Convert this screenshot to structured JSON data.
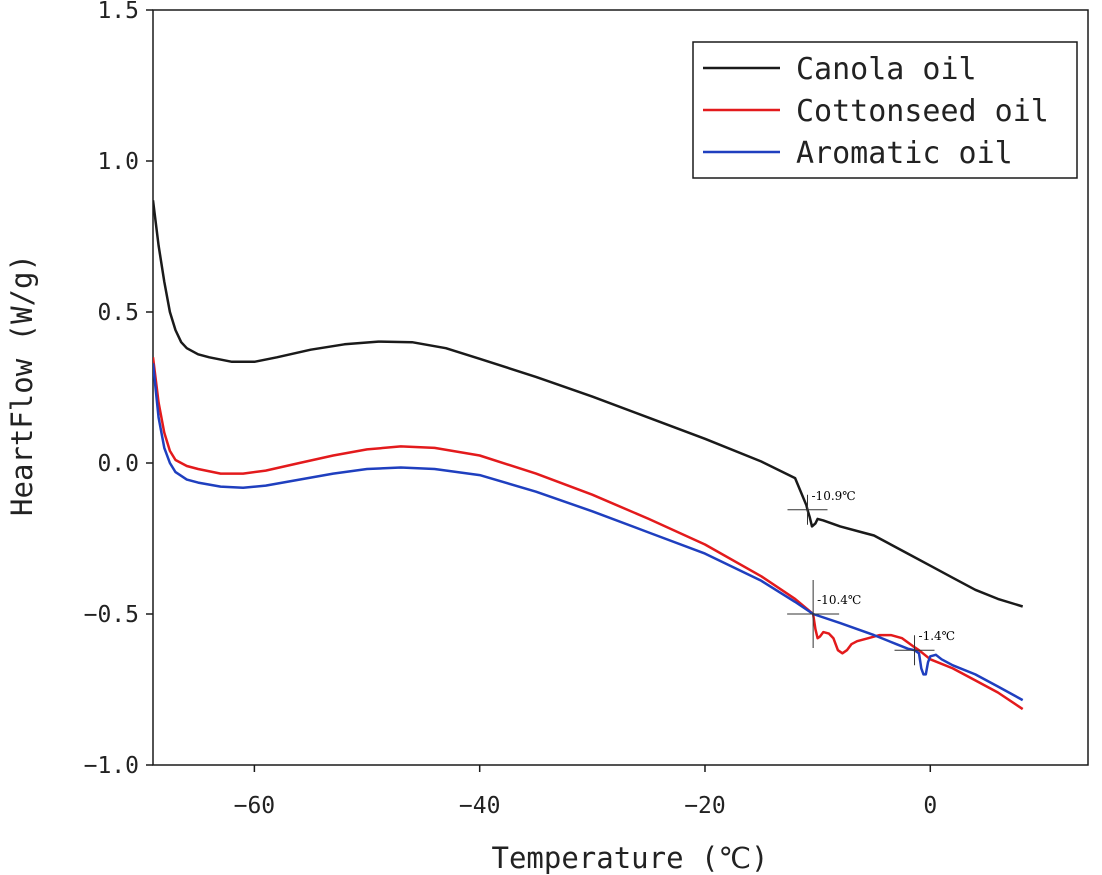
{
  "chart_data": {
    "type": "line",
    "xlabel": "Temperature (℃)",
    "ylabel": "HeartFlow (W/g)",
    "xlim": [
      -69,
      14
    ],
    "ylim": [
      -1.0,
      1.5
    ],
    "xticks": [
      -60,
      -40,
      -20,
      0
    ],
    "xtick_labels": [
      "−60",
      "−40",
      "−20",
      "0"
    ],
    "yticks": [
      -1.0,
      -0.5,
      0.0,
      0.5,
      1.0,
      1.5
    ],
    "ytick_labels": [
      "−1.0",
      "−0.5",
      "0.0",
      "0.5",
      "1.0",
      "1.5"
    ],
    "grid": false,
    "legend_position": "top-right",
    "series": [
      {
        "name": "Canola oil",
        "color": "#1a1a1a",
        "points": [
          [
            -69,
            0.87
          ],
          [
            -68.5,
            0.72
          ],
          [
            -68,
            0.6
          ],
          [
            -67.5,
            0.5
          ],
          [
            -67,
            0.44
          ],
          [
            -66.5,
            0.4
          ],
          [
            -66,
            0.38
          ],
          [
            -65,
            0.36
          ],
          [
            -64,
            0.35
          ],
          [
            -62,
            0.335
          ],
          [
            -60,
            0.335
          ],
          [
            -58,
            0.35
          ],
          [
            -55,
            0.375
          ],
          [
            -52,
            0.393
          ],
          [
            -49,
            0.402
          ],
          [
            -46,
            0.4
          ],
          [
            -43,
            0.38
          ],
          [
            -40,
            0.345
          ],
          [
            -35,
            0.285
          ],
          [
            -30,
            0.22
          ],
          [
            -25,
            0.15
          ],
          [
            -20,
            0.08
          ],
          [
            -15,
            0.005
          ],
          [
            -12,
            -0.05
          ],
          [
            -11,
            -0.14
          ],
          [
            -10.9,
            -0.155
          ],
          [
            -10.7,
            -0.18
          ],
          [
            -10.5,
            -0.21
          ],
          [
            -10.2,
            -0.2
          ],
          [
            -10.0,
            -0.185
          ],
          [
            -9.5,
            -0.19
          ],
          [
            -8,
            -0.21
          ],
          [
            -6,
            -0.23
          ],
          [
            -5,
            -0.24
          ],
          [
            -4,
            -0.26
          ],
          [
            -2,
            -0.3
          ],
          [
            0,
            -0.34
          ],
          [
            2,
            -0.38
          ],
          [
            4,
            -0.42
          ],
          [
            6,
            -0.45
          ],
          [
            8.2,
            -0.475
          ]
        ]
      },
      {
        "name": "Cottonseed oil",
        "color": "#e31a1c",
        "points": [
          [
            -69,
            0.35
          ],
          [
            -68.5,
            0.2
          ],
          [
            -68,
            0.1
          ],
          [
            -67.5,
            0.04
          ],
          [
            -67,
            0.01
          ],
          [
            -66,
            -0.01
          ],
          [
            -65,
            -0.02
          ],
          [
            -63,
            -0.035
          ],
          [
            -61,
            -0.035
          ],
          [
            -59,
            -0.025
          ],
          [
            -56,
            0.0
          ],
          [
            -53,
            0.025
          ],
          [
            -50,
            0.045
          ],
          [
            -47,
            0.055
          ],
          [
            -44,
            0.05
          ],
          [
            -40,
            0.025
          ],
          [
            -35,
            -0.035
          ],
          [
            -30,
            -0.105
          ],
          [
            -25,
            -0.185
          ],
          [
            -20,
            -0.27
          ],
          [
            -15,
            -0.375
          ],
          [
            -12,
            -0.45
          ],
          [
            -10.4,
            -0.5
          ],
          [
            -10.2,
            -0.55
          ],
          [
            -10.0,
            -0.58
          ],
          [
            -9.8,
            -0.575
          ],
          [
            -9.5,
            -0.56
          ],
          [
            -9,
            -0.565
          ],
          [
            -8.6,
            -0.58
          ],
          [
            -8.2,
            -0.62
          ],
          [
            -7.8,
            -0.63
          ],
          [
            -7.4,
            -0.62
          ],
          [
            -7,
            -0.6
          ],
          [
            -6.5,
            -0.59
          ],
          [
            -5.5,
            -0.58
          ],
          [
            -4.5,
            -0.57
          ],
          [
            -3.5,
            -0.57
          ],
          [
            -2.5,
            -0.58
          ],
          [
            -1.4,
            -0.61
          ],
          [
            -1,
            -0.62
          ],
          [
            0,
            -0.65
          ],
          [
            2,
            -0.68
          ],
          [
            4,
            -0.72
          ],
          [
            6,
            -0.76
          ],
          [
            8.2,
            -0.815
          ]
        ]
      },
      {
        "name": "Aromatic oil",
        "color": "#1f3fbf",
        "points": [
          [
            -69,
            0.33
          ],
          [
            -68.5,
            0.15
          ],
          [
            -68,
            0.05
          ],
          [
            -67.5,
            0.0
          ],
          [
            -67,
            -0.03
          ],
          [
            -66,
            -0.055
          ],
          [
            -65,
            -0.065
          ],
          [
            -63,
            -0.078
          ],
          [
            -61,
            -0.082
          ],
          [
            -59,
            -0.075
          ],
          [
            -56,
            -0.055
          ],
          [
            -53,
            -0.035
          ],
          [
            -50,
            -0.02
          ],
          [
            -47,
            -0.015
          ],
          [
            -44,
            -0.02
          ],
          [
            -40,
            -0.04
          ],
          [
            -35,
            -0.095
          ],
          [
            -30,
            -0.16
          ],
          [
            -25,
            -0.23
          ],
          [
            -20,
            -0.3
          ],
          [
            -15,
            -0.39
          ],
          [
            -12,
            -0.46
          ],
          [
            -10.4,
            -0.5
          ],
          [
            -8,
            -0.53
          ],
          [
            -5,
            -0.57
          ],
          [
            -3,
            -0.6
          ],
          [
            -2,
            -0.615
          ],
          [
            -1.4,
            -0.62
          ],
          [
            -1,
            -0.63
          ],
          [
            -0.8,
            -0.68
          ],
          [
            -0.6,
            -0.7
          ],
          [
            -0.4,
            -0.7
          ],
          [
            -0.2,
            -0.66
          ],
          [
            0,
            -0.64
          ],
          [
            0.5,
            -0.635
          ],
          [
            1,
            -0.65
          ],
          [
            2,
            -0.67
          ],
          [
            4,
            -0.7
          ],
          [
            6,
            -0.74
          ],
          [
            8.2,
            -0.785
          ]
        ]
      }
    ],
    "annotations": [
      {
        "text": "-10.9℃",
        "x": -10.9,
        "y": -0.155,
        "color": "#1a1a1a"
      },
      {
        "text": "-10.4℃",
        "x": -10.4,
        "y": -0.5,
        "color": "#1a1a1a"
      },
      {
        "text": "-1.4℃",
        "x": -1.4,
        "y": -0.62,
        "color": "#1a1a1a"
      }
    ]
  }
}
